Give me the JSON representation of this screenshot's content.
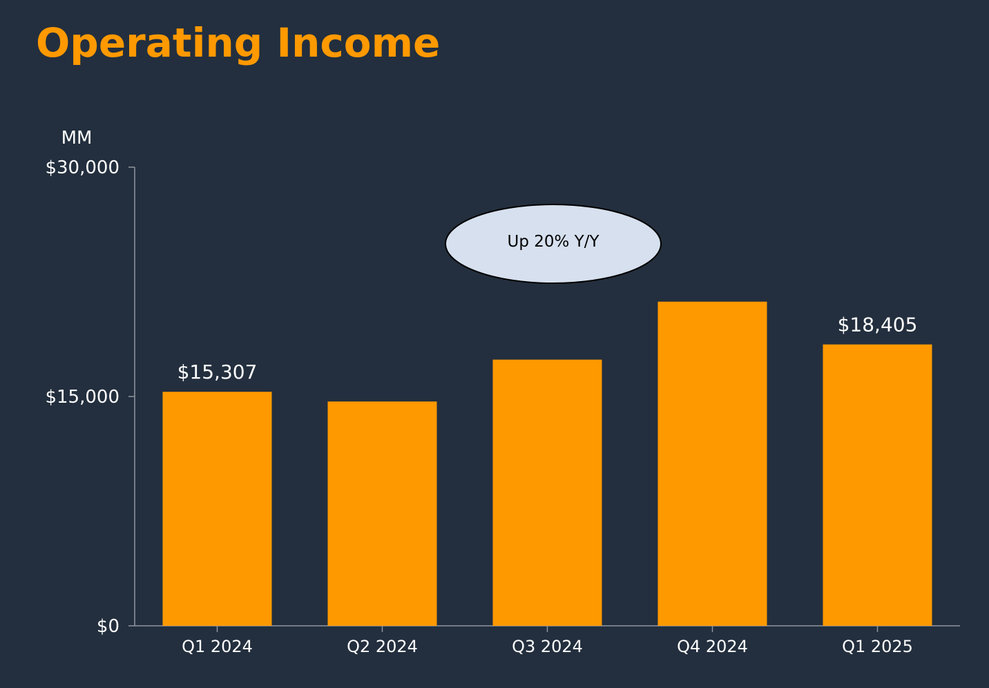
{
  "slide": {
    "title": "Operating Income"
  },
  "colors": {
    "background": "#232f3e",
    "accent": "#ff9900",
    "bar": "#ff9900",
    "axis": "#8f96a0",
    "text": "#ffffff",
    "callout_fill": "#d6e0ee"
  },
  "chart_data": {
    "type": "bar",
    "title": "Operating Income",
    "unit_label": "MM",
    "categories": [
      "Q1 2024",
      "Q2 2024",
      "Q3 2024",
      "Q4 2024",
      "Q1 2025"
    ],
    "values": [
      15307,
      14672,
      17411,
      21203,
      18405
    ],
    "data_labels": [
      "$15,307",
      "",
      "",
      "",
      "$18,405"
    ],
    "ylim": [
      0,
      30000
    ],
    "yticks": [
      0,
      15000,
      30000
    ],
    "ytick_labels": [
      "$0",
      "$15,000",
      "$30,000"
    ],
    "grid": false,
    "legend": "none",
    "annotation": "Up 20% Y/Y"
  }
}
